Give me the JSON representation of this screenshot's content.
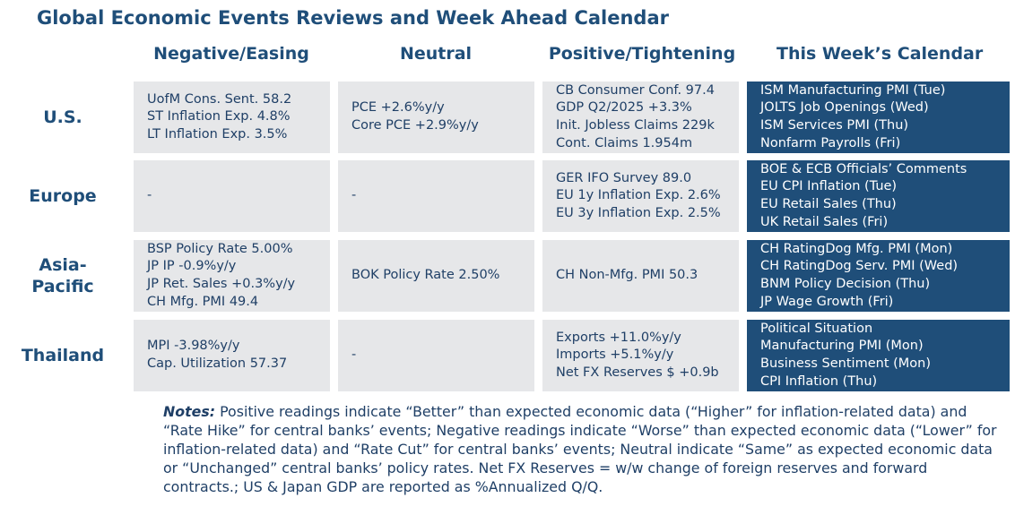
{
  "title": "Global Economic Events Reviews and Week Ahead Calendar",
  "columns": [
    "Negative/Easing",
    "Neutral",
    "Positive/Tightening",
    "This Week’s Calendar"
  ],
  "rows": [
    {
      "label": "U.S.",
      "negative": [
        "UofM Cons. Sent. 58.2",
        "ST Inflation Exp. 4.8%",
        "LT Inflation Exp. 3.5%"
      ],
      "neutral": [
        "PCE +2.6%y/y",
        "Core PCE +2.9%y/y"
      ],
      "positive": [
        "CB Consumer Conf. 97.4",
        "GDP Q2/2025 +3.3%",
        "Init. Jobless Claims 229k",
        "Cont. Claims 1.954m"
      ],
      "calendar": [
        "ISM Manufacturing PMI (Tue)",
        "JOLTS Job Openings (Wed)",
        "ISM Services PMI (Thu)",
        "Nonfarm Payrolls (Fri)"
      ]
    },
    {
      "label": "Europe",
      "negative": [
        "-"
      ],
      "neutral": [
        "-"
      ],
      "positive": [
        "GER IFO Survey 89.0",
        "EU 1y Inflation Exp. 2.6%",
        "EU 3y Inflation Exp. 2.5%"
      ],
      "calendar": [
        "BOE & ECB Officials’ Comments",
        "EU CPI Inflation (Tue)",
        "EU Retail Sales (Thu)",
        "UK Retail Sales (Fri)"
      ]
    },
    {
      "label_lines": [
        "Asia-",
        "Pacific"
      ],
      "negative": [
        "BSP Policy Rate 5.00%",
        "JP IP -0.9%y/y",
        "JP Ret. Sales +0.3%y/y",
        "CH Mfg. PMI 49.4"
      ],
      "neutral": [
        "BOK Policy Rate 2.50%"
      ],
      "positive": [
        "CH Non-Mfg. PMI 50.3"
      ],
      "calendar": [
        "CH RatingDog Mfg. PMI (Mon)",
        "CH RatingDog Serv. PMI (Wed)",
        "BNM Policy Decision (Thu)",
        "JP Wage Growth (Fri)"
      ]
    },
    {
      "label": "Thailand",
      "negative": [
        "MPI -3.98%y/y",
        "Cap. Utilization 57.37"
      ],
      "neutral": [
        "-"
      ],
      "positive": [
        "Exports +11.0%y/y",
        "Imports +5.1%y/y",
        "Net FX Reserves $ +0.9b"
      ],
      "calendar": [
        "Political Situation",
        "Manufacturing PMI (Mon)",
        "Business Sentiment (Mon)",
        "CPI Inflation (Thu)"
      ]
    }
  ],
  "notes": {
    "lead": "Notes:",
    "text": " Positive readings indicate “Better” than expected economic data (“Higher” for inflation-related data) and “Rate Hike” for central banks’ events; Negative readings indicate “Worse” than expected economic data (“Lower” for inflation-related data) and “Rate Cut” for central banks’ events; Neutral indicate “Same” as expected economic data or “Unchanged” central banks’ policy rates. Net FX Reserves = w/w change of foreign reserves and forward contracts.; US & Japan GDP are reported as %Annualized Q/Q."
  },
  "colors": {
    "heading": "#1f4e79",
    "cell_gray": "#e6e7e9",
    "calendar_blue": "#1f4e79",
    "text": "#1f3f66"
  }
}
